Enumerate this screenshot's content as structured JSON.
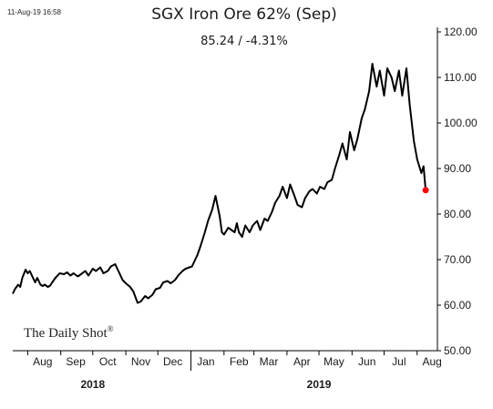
{
  "timestamp": "11-Aug-19 16:58",
  "watermark": "The Daily Shot",
  "watermark_mark": "®",
  "chart_data": {
    "type": "line",
    "title": "SGX Iron Ore 62% (Sep)",
    "subtitle": "85.24  /  -4.31%",
    "xlabel": "",
    "ylabel": "",
    "ylim": [
      50,
      120
    ],
    "yticks": [
      50,
      60,
      70,
      80,
      90,
      100,
      110,
      120
    ],
    "ytick_labels": [
      "50.00",
      "60.00",
      "70.00",
      "80.00",
      "90.00",
      "100.00",
      "110.00",
      "120.00"
    ],
    "ytick_position": "right",
    "xlim": [
      "2018-07-18",
      "2019-08-20"
    ],
    "xticks": [
      {
        "label": "Aug",
        "date": "2018-08-15"
      },
      {
        "label": "Sep",
        "date": "2018-09-15"
      },
      {
        "label": "Oct",
        "date": "2018-10-15"
      },
      {
        "label": "Nov",
        "date": "2018-11-15"
      },
      {
        "label": "Dec",
        "date": "2018-12-15"
      },
      {
        "label": "Jan",
        "date": "2019-01-15"
      },
      {
        "label": "Feb",
        "date": "2019-02-15"
      },
      {
        "label": "Mar",
        "date": "2019-03-15"
      },
      {
        "label": "Apr",
        "date": "2019-04-15"
      },
      {
        "label": "May",
        "date": "2019-05-15"
      },
      {
        "label": "Jun",
        "date": "2019-06-15"
      },
      {
        "label": "Jul",
        "date": "2019-07-15"
      },
      {
        "label": "Aug",
        "date": "2019-08-15"
      }
    ],
    "year_labels": [
      {
        "label": "2018",
        "date": "2018-10-01"
      },
      {
        "label": "2019",
        "date": "2019-05-01"
      }
    ],
    "grid": false,
    "line_color": "#000000",
    "last_point_color": "#ff0000",
    "series": [
      {
        "x": [
          "2018-07-18",
          "2018-07-20",
          "2018-07-23",
          "2018-07-25",
          "2018-07-27",
          "2018-07-30",
          "2018-08-01",
          "2018-08-03",
          "2018-08-06",
          "2018-08-08",
          "2018-08-10",
          "2018-08-13",
          "2018-08-15",
          "2018-08-17",
          "2018-08-20",
          "2018-08-22",
          "2018-08-24",
          "2018-08-27",
          "2018-08-29",
          "2018-08-31",
          "2018-09-04",
          "2018-09-07",
          "2018-09-10",
          "2018-09-13",
          "2018-09-17",
          "2018-09-20",
          "2018-09-24",
          "2018-09-27",
          "2018-10-01",
          "2018-10-04",
          "2018-10-08",
          "2018-10-11",
          "2018-10-15",
          "2018-10-18",
          "2018-10-22",
          "2018-10-25",
          "2018-10-29",
          "2018-11-01",
          "2018-11-05",
          "2018-11-08",
          "2018-11-12",
          "2018-11-15",
          "2018-11-19",
          "2018-11-22",
          "2018-11-26",
          "2018-11-29",
          "2018-12-03",
          "2018-12-06",
          "2018-12-10",
          "2018-12-13",
          "2018-12-17",
          "2018-12-20",
          "2018-12-24",
          "2018-12-27",
          "2019-01-02",
          "2019-01-07",
          "2019-01-10",
          "2019-01-14",
          "2019-01-17",
          "2019-01-21",
          "2019-01-24",
          "2019-01-28",
          "2019-01-30",
          "2019-02-01",
          "2019-02-05",
          "2019-02-08",
          "2019-02-11",
          "2019-02-13",
          "2019-02-15",
          "2019-02-18",
          "2019-02-21",
          "2019-02-25",
          "2019-02-28",
          "2019-03-04",
          "2019-03-07",
          "2019-03-11",
          "2019-03-14",
          "2019-03-18",
          "2019-03-21",
          "2019-03-25",
          "2019-03-28",
          "2019-04-01",
          "2019-04-04",
          "2019-04-08",
          "2019-04-11",
          "2019-04-15",
          "2019-04-18",
          "2019-04-22",
          "2019-04-25",
          "2019-04-29",
          "2019-05-02",
          "2019-05-06",
          "2019-05-09",
          "2019-05-13",
          "2019-05-16",
          "2019-05-20",
          "2019-05-23",
          "2019-05-27",
          "2019-05-30",
          "2019-06-03",
          "2019-06-06",
          "2019-06-10",
          "2019-06-13",
          "2019-06-17",
          "2019-06-20",
          "2019-06-24",
          "2019-06-27",
          "2019-07-01",
          "2019-07-04",
          "2019-07-08",
          "2019-07-11",
          "2019-07-15",
          "2019-07-18",
          "2019-07-22",
          "2019-07-25",
          "2019-07-29",
          "2019-08-01",
          "2019-08-05",
          "2019-08-07",
          "2019-08-09"
        ],
        "values": [
          62.5,
          63.5,
          64.5,
          64.0,
          66.0,
          67.8,
          67.0,
          67.5,
          66.0,
          65.0,
          66.0,
          64.5,
          64.2,
          64.5,
          64.0,
          64.3,
          65.0,
          66.0,
          66.5,
          67.0,
          66.8,
          67.2,
          66.5,
          67.0,
          66.3,
          66.8,
          67.5,
          66.5,
          68.0,
          67.5,
          68.3,
          67.0,
          67.5,
          68.5,
          69.0,
          67.5,
          65.5,
          64.8,
          64.0,
          63.0,
          60.5,
          60.8,
          62.0,
          61.5,
          62.3,
          63.5,
          63.8,
          65.0,
          65.3,
          64.8,
          65.5,
          66.5,
          67.5,
          68.0,
          68.5,
          71.0,
          73.0,
          76.0,
          78.5,
          81.0,
          84.0,
          79.5,
          76.0,
          75.5,
          77.0,
          76.5,
          76.0,
          78.0,
          76.0,
          75.0,
          77.5,
          76.0,
          77.5,
          78.5,
          76.5,
          79.0,
          78.5,
          80.5,
          82.5,
          84.0,
          86.0,
          83.5,
          86.5,
          84.0,
          82.0,
          81.5,
          83.5,
          85.0,
          85.5,
          84.5,
          86.0,
          85.5,
          87.0,
          87.5,
          90.0,
          93.0,
          95.5,
          92.0,
          98.0,
          94.0,
          96.5,
          101.0,
          103.0,
          107.0,
          113.0,
          108.0,
          111.5,
          106.0,
          112.0,
          110.0,
          107.0,
          111.5,
          106.0,
          112.0,
          104.0,
          96.0,
          92.0,
          89.0,
          90.5,
          85.24
        ]
      }
    ]
  }
}
